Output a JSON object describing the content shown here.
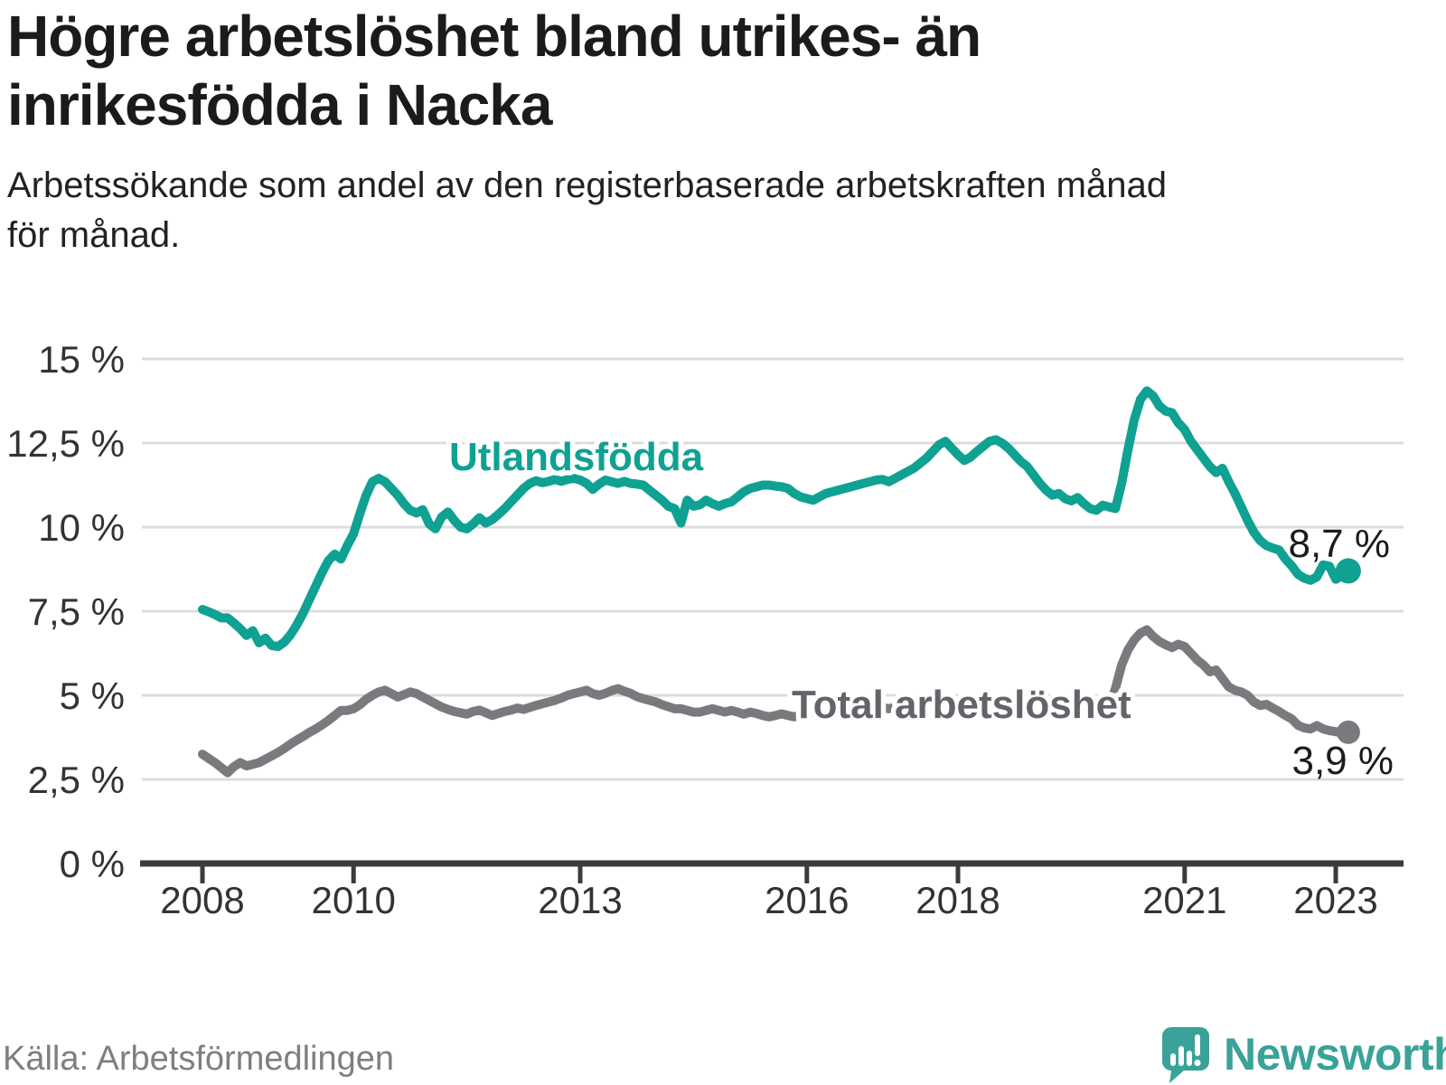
{
  "header": {
    "title": "Högre arbetslöshet bland utrikes- än\ninrikesfödda i Nacka",
    "subtitle": "Arbetssökande som andel av den registerbaserade arbetskraften månad\nför månad."
  },
  "footer": {
    "source": "Källa: Arbetsförmedlingen",
    "brand": "Newsworthy"
  },
  "colors": {
    "teal_line": "#0fa192",
    "gray_line": "#7a7a7e",
    "gray_label": "#63636a",
    "grid": "#dcdcdc",
    "axis": "#3b3b3b",
    "tick_text": "#333333",
    "value_text": "#1c1c1c",
    "source_text": "#7f7f7f",
    "logo_teal": "#3aa298"
  },
  "chart_data": {
    "type": "line",
    "x_start_month": "2008-01",
    "x_end_month": "2023-03",
    "x_ticks": [
      2008,
      2010,
      2013,
      2016,
      2018,
      2021,
      2023
    ],
    "ylim": [
      0,
      15
    ],
    "grid": true,
    "y_ticks": [
      {
        "v": 0,
        "label": "0 %"
      },
      {
        "v": 2.5,
        "label": "2,5 %"
      },
      {
        "v": 5,
        "label": "5 %"
      },
      {
        "v": 7.5,
        "label": "7,5 %"
      },
      {
        "v": 10,
        "label": "10 %"
      },
      {
        "v": 12.5,
        "label": "12,5 %"
      },
      {
        "v": 15,
        "label": "15 %"
      }
    ],
    "series": [
      {
        "name": "Utlandsfödda",
        "color": "#0fa192",
        "label_color": "#0fa192",
        "end_label": "8,7 %",
        "end_value": 8.7,
        "values": [
          7.55,
          7.48,
          7.4,
          7.3,
          7.3,
          7.15,
          6.98,
          6.78,
          6.92,
          6.56,
          6.7,
          6.48,
          6.45,
          6.58,
          6.8,
          7.1,
          7.45,
          7.85,
          8.25,
          8.65,
          9.0,
          9.2,
          9.05,
          9.45,
          9.8,
          10.4,
          10.95,
          11.35,
          11.45,
          11.35,
          11.15,
          10.95,
          10.7,
          10.5,
          10.42,
          10.52,
          10.1,
          9.95,
          10.3,
          10.45,
          10.2,
          10.0,
          9.95,
          10.1,
          10.28,
          10.12,
          10.22,
          10.38,
          10.55,
          10.75,
          10.95,
          11.15,
          11.3,
          11.38,
          11.32,
          11.36,
          11.42,
          11.36,
          11.42,
          11.45,
          11.4,
          11.3,
          11.12,
          11.28,
          11.4,
          11.35,
          11.3,
          11.36,
          11.3,
          11.28,
          11.25,
          11.1,
          10.95,
          10.8,
          10.62,
          10.55,
          10.12,
          10.8,
          10.62,
          10.66,
          10.8,
          10.7,
          10.62,
          10.7,
          10.75,
          10.9,
          11.05,
          11.15,
          11.2,
          11.25,
          11.25,
          11.22,
          11.2,
          11.15,
          11.0,
          10.9,
          10.85,
          10.8,
          10.9,
          11.0,
          11.05,
          11.1,
          11.15,
          11.2,
          11.25,
          11.3,
          11.35,
          11.4,
          11.42,
          11.35,
          11.45,
          11.55,
          11.65,
          11.75,
          11.9,
          12.05,
          12.25,
          12.45,
          12.55,
          12.35,
          12.15,
          11.98,
          12.08,
          12.25,
          12.4,
          12.55,
          12.6,
          12.5,
          12.35,
          12.15,
          11.95,
          11.8,
          11.55,
          11.3,
          11.1,
          10.95,
          11.0,
          10.85,
          10.78,
          10.88,
          10.7,
          10.55,
          10.5,
          10.65,
          10.6,
          10.55,
          11.3,
          12.3,
          13.2,
          13.8,
          14.05,
          13.9,
          13.6,
          13.45,
          13.4,
          13.1,
          12.9,
          12.55,
          12.3,
          12.05,
          11.8,
          11.62,
          11.75,
          11.35,
          11.0,
          10.6,
          10.2,
          9.85,
          9.6,
          9.45,
          9.38,
          9.32,
          9.05,
          8.85,
          8.6,
          8.48,
          8.42,
          8.52,
          8.88,
          8.84,
          8.45,
          8.55,
          8.7
        ]
      },
      {
        "name": "Total arbetslöshet",
        "color": "#7a7a7e",
        "label_color": "#63636a",
        "end_label": "3,9 %",
        "end_value": 3.9,
        "values": [
          3.25,
          3.12,
          3.0,
          2.85,
          2.7,
          2.88,
          3.0,
          2.9,
          2.95,
          3.0,
          3.1,
          3.2,
          3.3,
          3.42,
          3.55,
          3.67,
          3.78,
          3.9,
          4.0,
          4.12,
          4.25,
          4.4,
          4.55,
          4.55,
          4.6,
          4.72,
          4.88,
          5.0,
          5.1,
          5.15,
          5.05,
          4.95,
          5.02,
          5.1,
          5.05,
          4.95,
          4.85,
          4.75,
          4.65,
          4.58,
          4.52,
          4.48,
          4.44,
          4.52,
          4.56,
          4.48,
          4.4,
          4.46,
          4.52,
          4.56,
          4.62,
          4.58,
          4.64,
          4.7,
          4.75,
          4.8,
          4.85,
          4.92,
          5.0,
          5.05,
          5.1,
          5.15,
          5.05,
          5.0,
          5.06,
          5.14,
          5.2,
          5.12,
          5.06,
          4.96,
          4.9,
          4.85,
          4.8,
          4.72,
          4.66,
          4.6,
          4.6,
          4.55,
          4.5,
          4.5,
          4.55,
          4.6,
          4.55,
          4.5,
          4.55,
          4.5,
          4.44,
          4.5,
          4.46,
          4.4,
          4.36,
          4.4,
          4.45,
          4.4,
          4.36,
          4.4,
          4.45,
          4.5,
          4.45,
          4.4,
          4.45,
          4.5,
          4.46,
          4.4,
          4.45,
          4.5,
          4.55,
          4.6,
          4.64,
          4.6,
          4.65,
          4.7,
          4.74,
          4.7,
          4.74,
          4.8,
          4.76,
          4.8,
          4.85,
          4.8,
          4.85,
          4.9,
          4.85,
          4.8,
          4.85,
          4.9,
          4.86,
          4.8,
          4.76,
          4.7,
          4.74,
          4.7,
          4.66,
          4.7,
          4.66,
          4.6,
          4.64,
          4.6,
          4.56,
          4.6,
          4.64,
          4.56,
          4.5,
          4.6,
          4.7,
          5.2,
          5.9,
          6.35,
          6.65,
          6.85,
          6.95,
          6.75,
          6.6,
          6.5,
          6.42,
          6.52,
          6.45,
          6.25,
          6.05,
          5.9,
          5.7,
          5.75,
          5.5,
          5.25,
          5.15,
          5.1,
          5.0,
          4.8,
          4.7,
          4.73,
          4.62,
          4.52,
          4.4,
          4.3,
          4.11,
          4.03,
          4.0,
          4.1,
          4.0,
          3.95,
          3.92,
          3.88,
          3.9
        ]
      }
    ]
  }
}
